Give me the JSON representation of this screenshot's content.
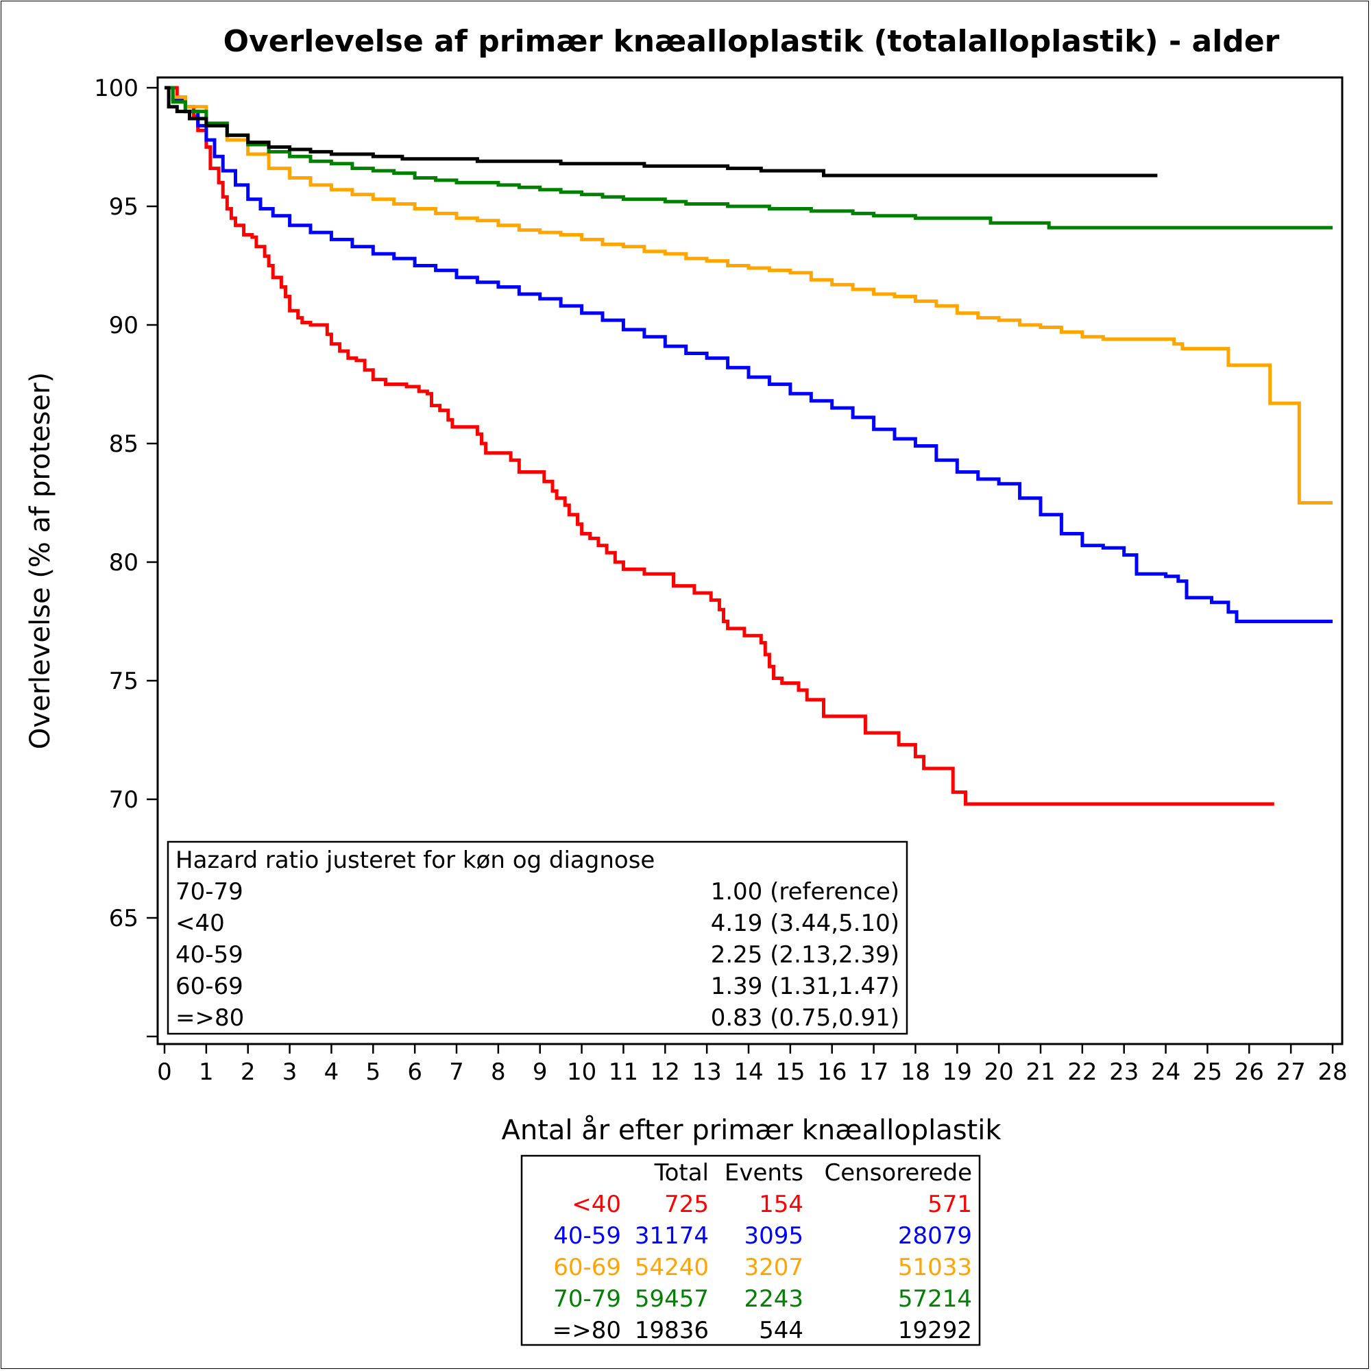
{
  "chart_data": {
    "type": "line",
    "title": "Overlevelse af primær knæalloplastik (totalalloplastik) - alder",
    "xlabel": "Antal år efter primær knæalloplastik",
    "ylabel": "Overlevelse (% af proteser)",
    "xlim": [
      0,
      28
    ],
    "ylim": [
      60,
      100
    ],
    "xticks": [
      0,
      1,
      2,
      3,
      4,
      5,
      6,
      7,
      8,
      9,
      10,
      11,
      12,
      13,
      14,
      15,
      16,
      17,
      18,
      19,
      20,
      21,
      22,
      23,
      24,
      25,
      26,
      27,
      28
    ],
    "yticks": [
      100,
      95,
      90,
      85,
      80,
      75,
      70,
      65
    ],
    "step": true,
    "series": [
      {
        "name": "<40",
        "color": "#ff0000",
        "points": [
          [
            0,
            100
          ],
          [
            0.1,
            100
          ],
          [
            0.3,
            99.6
          ],
          [
            0.5,
            99.2
          ],
          [
            0.7,
            98.8
          ],
          [
            0.8,
            98.2
          ],
          [
            1.0,
            97.5
          ],
          [
            1.1,
            96.6
          ],
          [
            1.3,
            96.0
          ],
          [
            1.4,
            95.4
          ],
          [
            1.5,
            94.9
          ],
          [
            1.6,
            94.5
          ],
          [
            1.7,
            94.2
          ],
          [
            1.9,
            93.8
          ],
          [
            2.1,
            93.7
          ],
          [
            2.2,
            93.3
          ],
          [
            2.4,
            92.9
          ],
          [
            2.5,
            92.5
          ],
          [
            2.6,
            92.0
          ],
          [
            2.8,
            91.6
          ],
          [
            2.9,
            91.2
          ],
          [
            3.0,
            90.6
          ],
          [
            3.2,
            90.3
          ],
          [
            3.3,
            90.1
          ],
          [
            3.5,
            90.0
          ],
          [
            3.9,
            89.6
          ],
          [
            4.0,
            89.2
          ],
          [
            4.2,
            88.9
          ],
          [
            4.4,
            88.6
          ],
          [
            4.6,
            88.5
          ],
          [
            4.8,
            88.1
          ],
          [
            5.0,
            87.7
          ],
          [
            5.3,
            87.5
          ],
          [
            5.8,
            87.4
          ],
          [
            6.1,
            87.2
          ],
          [
            6.3,
            87.1
          ],
          [
            6.4,
            86.6
          ],
          [
            6.6,
            86.4
          ],
          [
            6.8,
            86.0
          ],
          [
            6.9,
            85.7
          ],
          [
            7.5,
            85.4
          ],
          [
            7.6,
            85.0
          ],
          [
            7.7,
            84.6
          ],
          [
            8.3,
            84.3
          ],
          [
            8.5,
            83.8
          ],
          [
            9.0,
            83.8
          ],
          [
            9.1,
            83.4
          ],
          [
            9.3,
            83.0
          ],
          [
            9.4,
            82.7
          ],
          [
            9.6,
            82.4
          ],
          [
            9.7,
            82.0
          ],
          [
            9.9,
            81.6
          ],
          [
            10.0,
            81.2
          ],
          [
            10.2,
            81.0
          ],
          [
            10.4,
            80.7
          ],
          [
            10.6,
            80.4
          ],
          [
            10.8,
            80.0
          ],
          [
            11.0,
            79.7
          ],
          [
            11.5,
            79.5
          ],
          [
            12.2,
            79.0
          ],
          [
            12.7,
            78.7
          ],
          [
            13.1,
            78.4
          ],
          [
            13.3,
            78.0
          ],
          [
            13.4,
            77.5
          ],
          [
            13.5,
            77.2
          ],
          [
            13.9,
            76.9
          ],
          [
            14.3,
            76.6
          ],
          [
            14.4,
            76.1
          ],
          [
            14.5,
            75.6
          ],
          [
            14.6,
            75.1
          ],
          [
            14.8,
            74.9
          ],
          [
            15.2,
            74.6
          ],
          [
            15.4,
            74.2
          ],
          [
            15.8,
            73.5
          ],
          [
            16.8,
            72.8
          ],
          [
            17.6,
            72.3
          ],
          [
            18.0,
            71.8
          ],
          [
            18.2,
            71.3
          ],
          [
            18.9,
            70.3
          ],
          [
            19.2,
            69.8
          ],
          [
            26.6,
            69.8
          ]
        ]
      },
      {
        "name": "40-59",
        "color": "#0000ff",
        "points": [
          [
            0,
            100
          ],
          [
            0.2,
            99.5
          ],
          [
            0.5,
            99.0
          ],
          [
            0.8,
            98.4
          ],
          [
            1.0,
            97.8
          ],
          [
            1.2,
            97.1
          ],
          [
            1.4,
            96.5
          ],
          [
            1.7,
            95.9
          ],
          [
            2.0,
            95.3
          ],
          [
            2.3,
            94.9
          ],
          [
            2.6,
            94.6
          ],
          [
            3.0,
            94.2
          ],
          [
            3.5,
            93.9
          ],
          [
            4.0,
            93.6
          ],
          [
            4.5,
            93.3
          ],
          [
            5.0,
            93.0
          ],
          [
            5.5,
            92.8
          ],
          [
            6.0,
            92.5
          ],
          [
            6.5,
            92.3
          ],
          [
            7.0,
            92.0
          ],
          [
            7.5,
            91.8
          ],
          [
            8.0,
            91.6
          ],
          [
            8.5,
            91.3
          ],
          [
            9.0,
            91.1
          ],
          [
            9.5,
            90.8
          ],
          [
            10.0,
            90.5
          ],
          [
            10.5,
            90.2
          ],
          [
            11.0,
            89.8
          ],
          [
            11.5,
            89.5
          ],
          [
            12.0,
            89.1
          ],
          [
            12.5,
            88.8
          ],
          [
            13.0,
            88.6
          ],
          [
            13.5,
            88.2
          ],
          [
            14.0,
            87.8
          ],
          [
            14.5,
            87.5
          ],
          [
            15.0,
            87.1
          ],
          [
            15.5,
            86.8
          ],
          [
            16.0,
            86.5
          ],
          [
            16.5,
            86.1
          ],
          [
            17.0,
            85.6
          ],
          [
            17.5,
            85.2
          ],
          [
            18.0,
            84.9
          ],
          [
            18.5,
            84.3
          ],
          [
            19.0,
            83.8
          ],
          [
            19.5,
            83.5
          ],
          [
            20.0,
            83.3
          ],
          [
            20.5,
            82.7
          ],
          [
            21.0,
            82.0
          ],
          [
            21.5,
            81.2
          ],
          [
            22.0,
            80.7
          ],
          [
            22.5,
            80.6
          ],
          [
            23.0,
            80.3
          ],
          [
            23.3,
            79.5
          ],
          [
            24.0,
            79.4
          ],
          [
            24.3,
            79.2
          ],
          [
            24.5,
            78.5
          ],
          [
            25.1,
            78.3
          ],
          [
            25.5,
            77.9
          ],
          [
            25.7,
            77.5
          ],
          [
            28.0,
            77.5
          ]
        ]
      },
      {
        "name": "60-69",
        "color": "#ffa500",
        "points": [
          [
            0,
            100
          ],
          [
            0.2,
            99.6
          ],
          [
            0.5,
            99.2
          ],
          [
            1.0,
            98.5
          ],
          [
            1.5,
            97.8
          ],
          [
            2.0,
            97.2
          ],
          [
            2.5,
            96.6
          ],
          [
            3.0,
            96.2
          ],
          [
            3.5,
            95.9
          ],
          [
            4.0,
            95.7
          ],
          [
            4.5,
            95.5
          ],
          [
            5.0,
            95.3
          ],
          [
            5.5,
            95.1
          ],
          [
            6.0,
            94.9
          ],
          [
            6.5,
            94.7
          ],
          [
            7.0,
            94.5
          ],
          [
            7.5,
            94.4
          ],
          [
            8.0,
            94.2
          ],
          [
            8.5,
            94.0
          ],
          [
            9.0,
            93.9
          ],
          [
            9.5,
            93.8
          ],
          [
            10.0,
            93.6
          ],
          [
            10.5,
            93.4
          ],
          [
            11.0,
            93.3
          ],
          [
            11.5,
            93.1
          ],
          [
            12.0,
            93.0
          ],
          [
            12.5,
            92.8
          ],
          [
            13.0,
            92.7
          ],
          [
            13.5,
            92.5
          ],
          [
            14.0,
            92.4
          ],
          [
            14.5,
            92.3
          ],
          [
            15.0,
            92.2
          ],
          [
            15.5,
            91.9
          ],
          [
            16.0,
            91.7
          ],
          [
            16.5,
            91.5
          ],
          [
            17.0,
            91.3
          ],
          [
            17.5,
            91.2
          ],
          [
            18.0,
            91.0
          ],
          [
            18.5,
            90.8
          ],
          [
            19.0,
            90.5
          ],
          [
            19.5,
            90.3
          ],
          [
            20.0,
            90.2
          ],
          [
            20.5,
            90.0
          ],
          [
            21.0,
            89.9
          ],
          [
            21.5,
            89.7
          ],
          [
            22.0,
            89.5
          ],
          [
            22.5,
            89.4
          ],
          [
            23.0,
            89.4
          ],
          [
            24.2,
            89.2
          ],
          [
            24.4,
            89.0
          ],
          [
            25.5,
            88.3
          ],
          [
            26.5,
            86.7
          ],
          [
            27.2,
            82.5
          ],
          [
            28.0,
            82.5
          ]
        ]
      },
      {
        "name": "70-79",
        "color": "#008000",
        "points": [
          [
            0,
            100
          ],
          [
            0.2,
            99.4
          ],
          [
            0.5,
            99.0
          ],
          [
            1.0,
            98.5
          ],
          [
            1.5,
            98.0
          ],
          [
            2.0,
            97.6
          ],
          [
            2.5,
            97.3
          ],
          [
            3.0,
            97.1
          ],
          [
            3.5,
            96.9
          ],
          [
            4.0,
            96.8
          ],
          [
            4.5,
            96.6
          ],
          [
            5.0,
            96.5
          ],
          [
            5.5,
            96.4
          ],
          [
            6.0,
            96.2
          ],
          [
            6.5,
            96.1
          ],
          [
            7.0,
            96.0
          ],
          [
            7.5,
            96.0
          ],
          [
            8.0,
            95.9
          ],
          [
            8.5,
            95.8
          ],
          [
            9.0,
            95.7
          ],
          [
            9.5,
            95.6
          ],
          [
            10.0,
            95.5
          ],
          [
            10.5,
            95.4
          ],
          [
            11.0,
            95.3
          ],
          [
            11.5,
            95.3
          ],
          [
            12.0,
            95.2
          ],
          [
            12.5,
            95.1
          ],
          [
            13.0,
            95.1
          ],
          [
            13.5,
            95.0
          ],
          [
            14.0,
            95.0
          ],
          [
            14.5,
            94.9
          ],
          [
            15.0,
            94.9
          ],
          [
            15.5,
            94.8
          ],
          [
            16.0,
            94.8
          ],
          [
            16.5,
            94.7
          ],
          [
            17.0,
            94.6
          ],
          [
            17.5,
            94.6
          ],
          [
            18.0,
            94.5
          ],
          [
            18.5,
            94.5
          ],
          [
            19.0,
            94.5
          ],
          [
            19.8,
            94.3
          ],
          [
            21.2,
            94.1
          ],
          [
            28.0,
            94.1
          ]
        ]
      },
      {
        "name": "=>80",
        "color": "#000000",
        "points": [
          [
            0,
            100
          ],
          [
            0.1,
            99.2
          ],
          [
            0.3,
            99.0
          ],
          [
            0.6,
            98.7
          ],
          [
            1.0,
            98.4
          ],
          [
            1.5,
            98.0
          ],
          [
            2.0,
            97.7
          ],
          [
            2.5,
            97.5
          ],
          [
            3.0,
            97.4
          ],
          [
            3.5,
            97.3
          ],
          [
            4.0,
            97.2
          ],
          [
            5.0,
            97.1
          ],
          [
            5.7,
            97.0
          ],
          [
            6.5,
            97.0
          ],
          [
            7.5,
            96.9
          ],
          [
            8.5,
            96.9
          ],
          [
            9.5,
            96.8
          ],
          [
            10.5,
            96.8
          ],
          [
            11.5,
            96.7
          ],
          [
            12.5,
            96.7
          ],
          [
            13.5,
            96.6
          ],
          [
            14.3,
            96.5
          ],
          [
            15.8,
            96.3
          ],
          [
            23.8,
            96.3
          ]
        ]
      }
    ],
    "hazard_box": {
      "title": "Hazard ratio justeret for køn og diagnose",
      "rows": [
        {
          "group": "70-79",
          "value": "1.00 (reference)"
        },
        {
          "group": "<40",
          "value": "4.19 (3.44,5.10)"
        },
        {
          "group": "40-59",
          "value": "2.25 (2.13,2.39)"
        },
        {
          "group": "60-69",
          "value": "1.39 (1.31,1.47)"
        },
        {
          "group": "=>80",
          "value": "0.83 (0.75,0.91)"
        }
      ]
    },
    "counts_table": {
      "headers": [
        "",
        "Total",
        "Events",
        "Censorerede"
      ],
      "rows": [
        {
          "group": "<40",
          "total": "725",
          "events": "154",
          "censored": "571",
          "color": "#ff0000"
        },
        {
          "group": "40-59",
          "total": "31174",
          "events": "3095",
          "censored": "28079",
          "color": "#0000ff"
        },
        {
          "group": "60-69",
          "total": "54240",
          "events": "3207",
          "censored": "51033",
          "color": "#ffa500"
        },
        {
          "group": "70-79",
          "total": "59457",
          "events": "2243",
          "censored": "57214",
          "color": "#008000"
        },
        {
          "group": "=>80",
          "total": "19836",
          "events": "544",
          "censored": "19292",
          "color": "#000000"
        }
      ]
    }
  }
}
